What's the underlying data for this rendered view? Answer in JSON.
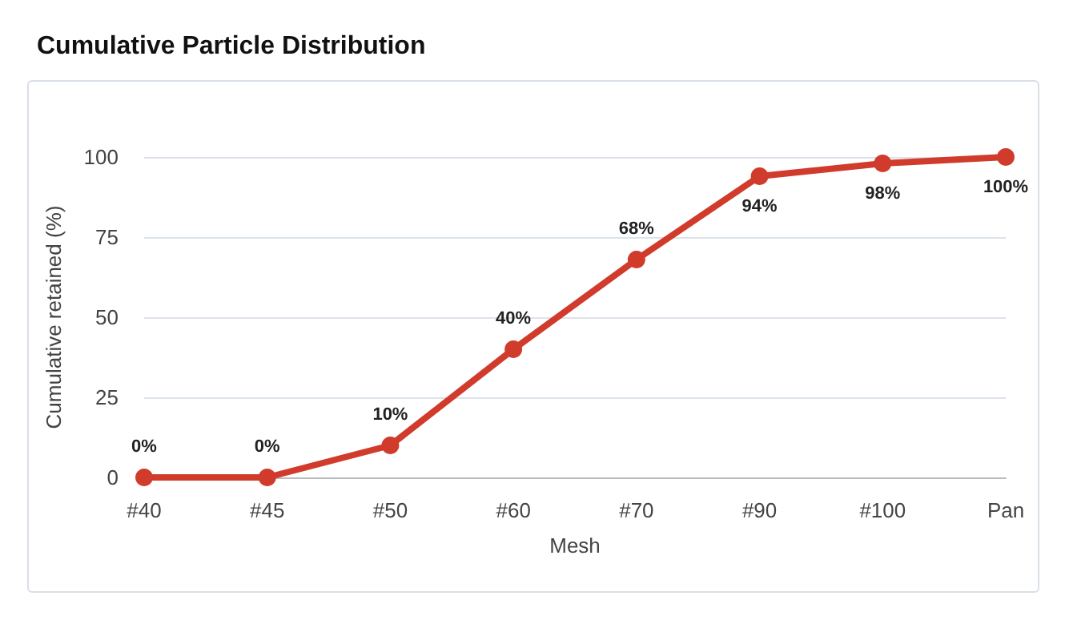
{
  "chart_data": {
    "type": "line",
    "title": "Cumulative Particle Distribution",
    "xlabel": "Mesh",
    "ylabel": "Cumulative retained (%)",
    "categories": [
      "#40",
      "#45",
      "#50",
      "#60",
      "#70",
      "#90",
      "#100",
      "Pan"
    ],
    "series": [
      {
        "color": "#d03b2c",
        "values": [
          0,
          0,
          10,
          40,
          68,
          94,
          98,
          100
        ],
        "value_labels": [
          "0%",
          "0%",
          "10%",
          "40%",
          "68%",
          "94%",
          "98%",
          "100%"
        ]
      }
    ],
    "ylim": [
      0,
      100
    ],
    "yticks": [
      0,
      25,
      50,
      75,
      100
    ],
    "grid": "y",
    "marker": "circle",
    "line_style": "solid"
  }
}
